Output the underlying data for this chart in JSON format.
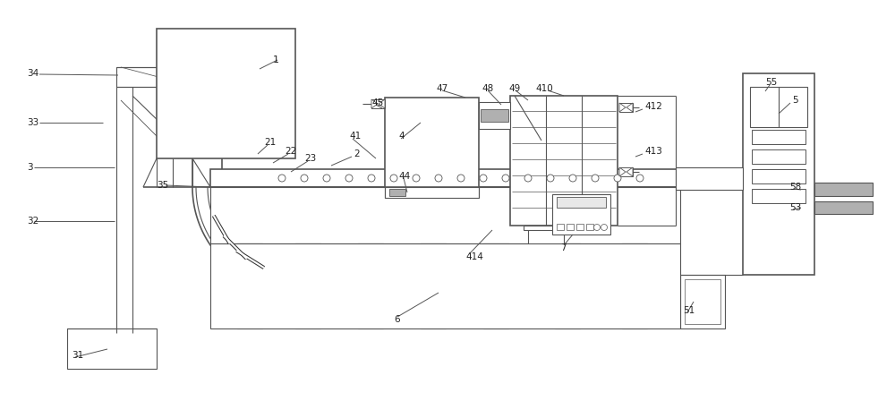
{
  "bg_color": "#ffffff",
  "lc": "#555555",
  "lc2": "#333333",
  "gray_fill": "#d0d0d0",
  "light_gray": "#e8e8e8",
  "mid_gray": "#b0b0b0",
  "figsize": [
    10.0,
    4.67
  ],
  "dpi": 100
}
